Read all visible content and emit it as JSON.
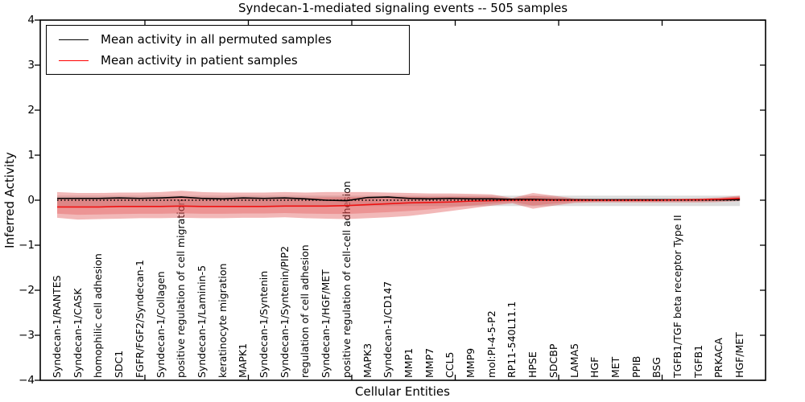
{
  "title": "Syndecan-1-mediated signaling events -- 505 samples",
  "axes": {
    "ylabel": "Inferred Activity",
    "xlabel": "Cellular Entities",
    "ytick_labels": [
      "4",
      "3",
      "2",
      "1",
      "0",
      "−1",
      "−2",
      "−3",
      "−4"
    ],
    "ylim": [
      -4,
      4
    ]
  },
  "legend": {
    "items": [
      {
        "label": "Mean activity in all permuted samples",
        "color": "#000000"
      },
      {
        "label": "Mean activity in patient samples",
        "color": "#ff0000"
      }
    ]
  },
  "chart_data": {
    "type": "line",
    "title": "Syndecan-1-mediated signaling events -- 505 samples",
    "xlabel": "Cellular Entities",
    "ylabel": "Inferred Activity",
    "ylim": [
      -4,
      4
    ],
    "grid": false,
    "legend_position": "upper left",
    "categories": [
      "Syndecan-1/RANTES",
      "Syndecan-1/CASK",
      "homophilic cell adhesion",
      "SDC1",
      "FGFR/FGF2/Syndecan-1",
      "Syndecan-1/Collagen",
      "positive regulation of cell migration",
      "Syndecan-1/Laminin-5",
      "keratinocyte migration",
      "MAPK1",
      "Syndecan-1/Syntenin",
      "Syndecan-1/Syntenin/PIP2",
      "regulation of cell adhesion",
      "Syndecan-1/HGF/MET",
      "positive regulation of cell-cell adhesion",
      "MAPK3",
      "Syndecan-1/CD147",
      "MMP1",
      "MMP7",
      "CCL5",
      "MMP9",
      "mol:PI-4-5-P2",
      "RP11-540L11.1",
      "HPSE",
      "SDCBP",
      "LAMA5",
      "HGF",
      "MET",
      "PPIB",
      "BSG",
      "TGFB1/TGF beta receptor Type II",
      "TGFB1",
      "PRKACA",
      "HGF/MET"
    ],
    "series": [
      {
        "name": "Mean activity in all permuted samples",
        "color": "#000000",
        "style": "solid",
        "values": [
          0.04,
          0.04,
          0.04,
          0.05,
          0.04,
          0.05,
          0.07,
          0.04,
          0.03,
          0.05,
          0.04,
          0.05,
          0.03,
          0.0,
          -0.01,
          0.06,
          0.07,
          0.04,
          0.03,
          0.04,
          0.03,
          0.03,
          0.02,
          0.02,
          0.01,
          0.01,
          0.01,
          0.01,
          0.01,
          0.01,
          0.01,
          0.01,
          0.01,
          0.01
        ]
      },
      {
        "name": "Mean activity in patient samples",
        "color": "#ee1111",
        "style": "solid",
        "values": [
          -0.15,
          -0.15,
          -0.15,
          -0.14,
          -0.14,
          -0.14,
          -0.13,
          -0.14,
          -0.14,
          -0.14,
          -0.14,
          -0.13,
          -0.13,
          -0.13,
          -0.12,
          -0.1,
          -0.08,
          -0.06,
          -0.05,
          -0.04,
          -0.02,
          -0.01,
          0.0,
          0.0,
          0.0,
          0.0,
          0.0,
          0.0,
          0.0,
          0.0,
          0.01,
          0.01,
          0.02,
          0.04
        ]
      },
      {
        "name": "zero reference",
        "color": "#000000",
        "style": "dotted",
        "values": [
          0,
          0,
          0,
          0,
          0,
          0,
          0,
          0,
          0,
          0,
          0,
          0,
          0,
          0,
          0,
          0,
          0,
          0,
          0,
          0,
          0,
          0,
          0,
          0,
          0,
          0,
          0,
          0,
          0,
          0,
          0,
          0,
          0,
          0
        ]
      }
    ],
    "bands": [
      {
        "name": "permuted samples spread",
        "color": "#bbbbbb",
        "opacity": 0.5,
        "upper": [
          0.1,
          0.1,
          0.1,
          0.1,
          0.1,
          0.1,
          0.1,
          0.1,
          0.1,
          0.1,
          0.1,
          0.1,
          0.1,
          0.1,
          0.1,
          0.1,
          0.1,
          0.1,
          0.1,
          0.1,
          0.1,
          0.1,
          0.1,
          0.1,
          0.1,
          0.1,
          0.1,
          0.1,
          0.1,
          0.1,
          0.1,
          0.1,
          0.1,
          0.1
        ],
        "lower": [
          -0.13,
          -0.13,
          -0.13,
          -0.13,
          -0.13,
          -0.13,
          -0.13,
          -0.13,
          -0.13,
          -0.13,
          -0.13,
          -0.13,
          -0.13,
          -0.13,
          -0.13,
          -0.13,
          -0.13,
          -0.13,
          -0.13,
          -0.13,
          -0.13,
          -0.13,
          -0.13,
          -0.13,
          -0.13,
          -0.13,
          -0.13,
          -0.13,
          -0.13,
          -0.13,
          -0.13,
          -0.13,
          -0.13,
          -0.13
        ]
      },
      {
        "name": "patient samples spread",
        "color": "#dd4444",
        "opacity": 0.38,
        "upper": [
          0.18,
          0.16,
          0.16,
          0.17,
          0.17,
          0.18,
          0.21,
          0.18,
          0.17,
          0.17,
          0.17,
          0.18,
          0.17,
          0.18,
          0.18,
          0.18,
          0.17,
          0.16,
          0.15,
          0.15,
          0.14,
          0.13,
          0.05,
          0.16,
          0.1,
          0.04,
          0.03,
          0.03,
          0.03,
          0.03,
          0.03,
          0.04,
          0.06,
          0.1
        ],
        "lower": [
          -0.39,
          -0.43,
          -0.42,
          -0.41,
          -0.4,
          -0.4,
          -0.39,
          -0.4,
          -0.4,
          -0.39,
          -0.39,
          -0.38,
          -0.4,
          -0.41,
          -0.42,
          -0.4,
          -0.38,
          -0.35,
          -0.3,
          -0.24,
          -0.18,
          -0.12,
          -0.07,
          -0.19,
          -0.12,
          -0.06,
          -0.05,
          -0.05,
          -0.05,
          -0.05,
          -0.05,
          -0.05,
          -0.04,
          -0.02
        ]
      }
    ]
  }
}
